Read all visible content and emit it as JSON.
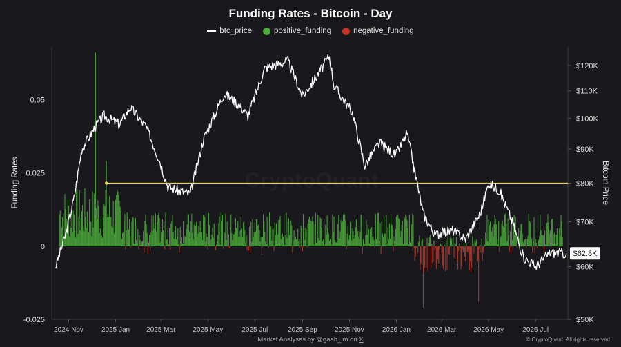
{
  "title": "Funding Rates - Bitcoin - Day",
  "legend": [
    {
      "label": "btc_price",
      "color": "#ffffff",
      "kind": "line"
    },
    {
      "label": "positive_funding",
      "color": "#4caf3a",
      "kind": "dot"
    },
    {
      "label": "negative_funding",
      "color": "#c0392b",
      "kind": "dot"
    }
  ],
  "y_left_label": "Funding Rates",
  "y_right_label": "Bitcoin Price",
  "watermark": "CryptoQuant",
  "footer": {
    "text": "Market Analyses by @gaah_im on ",
    "platform": "X"
  },
  "copyright": "© CryptoQuant. All rights reserved",
  "chart_data": {
    "type": "line",
    "x_ticks": [
      "2024 Nov",
      "2025 Jan",
      "2025 Mar",
      "2025 May",
      "2025 Jul",
      "2025 Sep",
      "2025 Nov",
      "2026 Jan",
      "2026 Mar",
      "2026 May",
      "2026 Jul"
    ],
    "y_left": {
      "label": "Funding Rates",
      "ticks": [
        "0.05",
        "0.025",
        "0",
        "-0.025"
      ],
      "range": [
        -0.025,
        0.068
      ]
    },
    "y_right": {
      "label": "Bitcoin Price",
      "scale": "log",
      "ticks": [
        "$120K",
        "$110K",
        "$100K",
        "$90K",
        "$80K",
        "$70K",
        "$60K",
        "$50K"
      ],
      "range": [
        50000,
        128000
      ]
    },
    "current_price_label": "$62.8K",
    "horizontal_reference": {
      "value": 80000,
      "color": "#e8d35a"
    },
    "btc_price": {
      "x": [
        "2024-10-15",
        "2024-10-28",
        "2024-11-08",
        "2024-11-18",
        "2024-12-05",
        "2024-12-17",
        "2025-01-06",
        "2025-01-20",
        "2025-02-10",
        "2025-02-28",
        "2025-03-10",
        "2025-04-08",
        "2025-04-25",
        "2025-05-22",
        "2025-06-10",
        "2025-06-22",
        "2025-07-14",
        "2025-08-13",
        "2025-09-01",
        "2025-09-20",
        "2025-10-06",
        "2025-10-12",
        "2025-11-05",
        "2025-11-21",
        "2025-12-10",
        "2025-12-31",
        "2026-01-15",
        "2026-02-05",
        "2026-02-20",
        "2026-03-15",
        "2026-04-01",
        "2026-04-20",
        "2026-05-01",
        "2026-05-15",
        "2026-06-01",
        "2026-06-15",
        "2026-07-01",
        "2026-07-20",
        "2026-08-10"
      ],
      "y": [
        60000,
        67000,
        76000,
        90000,
        97000,
        101000,
        98000,
        104000,
        97000,
        86000,
        79000,
        77000,
        93000,
        109000,
        105000,
        101000,
        119000,
        122000,
        108000,
        116000,
        124000,
        112000,
        102000,
        85000,
        92000,
        88000,
        95000,
        72000,
        67000,
        68000,
        66000,
        72000,
        80000,
        78000,
        70000,
        62000,
        60000,
        63000,
        62800
      ]
    },
    "positive_funding": {
      "typical_range": [
        0,
        0.012
      ],
      "max": 0.066,
      "max_date": "2024-12-06"
    },
    "negative_funding": {
      "typical_range": [
        -0.003,
        0
      ],
      "min": -0.021,
      "min_date": "2026-02-05"
    }
  }
}
